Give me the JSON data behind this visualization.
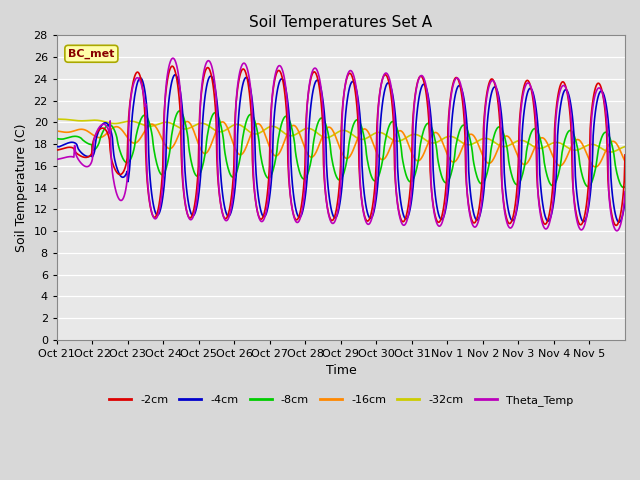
{
  "title": "Soil Temperatures Set A",
  "xlabel": "Time",
  "ylabel": "Soil Temperature (C)",
  "ylim": [
    0,
    28
  ],
  "yticks": [
    0,
    2,
    4,
    6,
    8,
    10,
    12,
    14,
    16,
    18,
    20,
    22,
    24,
    26,
    28
  ],
  "colors": {
    "-2cm": "#dd0000",
    "-4cm": "#0000cc",
    "-8cm": "#00cc00",
    "-16cm": "#ff8800",
    "-32cm": "#cccc00",
    "Theta_Temp": "#bb00bb"
  },
  "legend_label": "BC_met",
  "x_tick_labels": [
    "Oct 21",
    "Oct 22",
    "Oct 23",
    "Oct 24",
    "Oct 25",
    "Oct 26",
    "Oct 27",
    "Oct 28",
    "Oct 29",
    "Oct 30",
    "Oct 31",
    "Nov 1",
    "Nov 2",
    "Nov 3",
    "Nov 4",
    "Nov 5"
  ],
  "background_color": "#d8d8d8",
  "plot_background": "#e8e8e8",
  "title_fontsize": 11,
  "axis_fontsize": 9,
  "tick_fontsize": 8,
  "linewidth": 1.2,
  "figsize": [
    6.4,
    4.8
  ],
  "dpi": 100
}
